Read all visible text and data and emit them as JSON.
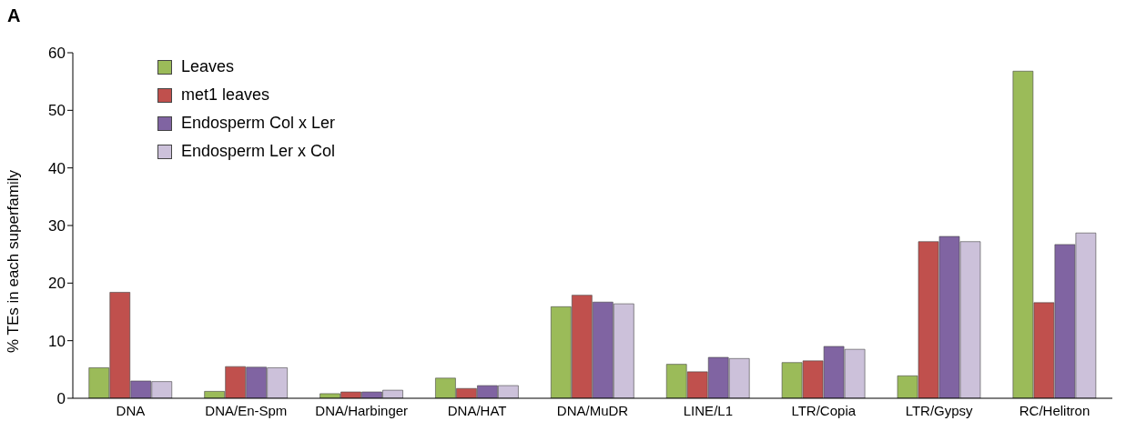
{
  "chart_data": {
    "type": "bar",
    "ylabel": "% TEs in each superfamily",
    "annotations": [
      "A"
    ],
    "categories": [
      "DNA",
      "DNA/En-Spm",
      "DNA/Harbinger",
      "DNA/HAT",
      "DNA/MuDR",
      "LINE/L1",
      "LTR/Copia",
      "LTR/Gypsy",
      "RC/Helitron"
    ],
    "series": [
      {
        "name": "Leaves",
        "color": "#9bbb59",
        "values": [
          5.3,
          1.2,
          0.8,
          3.5,
          15.9,
          5.9,
          6.2,
          3.9,
          56.8
        ]
      },
      {
        "name": "met1 leaves",
        "color": "#c0504d",
        "values": [
          18.4,
          5.5,
          1.1,
          1.7,
          17.9,
          4.6,
          6.5,
          27.2,
          16.6
        ]
      },
      {
        "name": "Endosperm Col x Ler",
        "color": "#8064a2",
        "values": [
          3.0,
          5.4,
          1.1,
          2.2,
          16.7,
          7.1,
          9.0,
          28.1,
          26.7
        ]
      },
      {
        "name": "Endosperm Ler x Col",
        "color": "#ccc1da",
        "values": [
          2.9,
          5.3,
          1.4,
          2.2,
          16.4,
          6.9,
          8.5,
          27.2,
          28.7
        ]
      }
    ],
    "ylim": [
      0,
      60
    ],
    "yticks": [
      0,
      10,
      20,
      30,
      40,
      50,
      60
    ],
    "grid": false,
    "legend": "top left"
  }
}
